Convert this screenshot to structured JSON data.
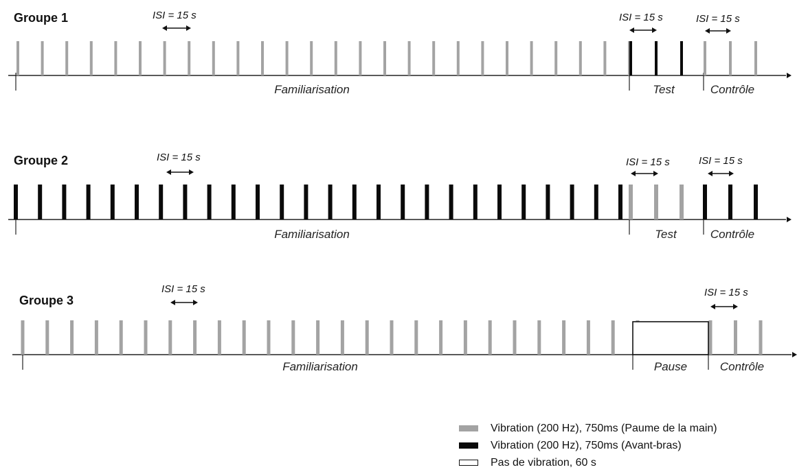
{
  "colors": {
    "palm": "#a3a3a3",
    "forearm": "#0a0a0a",
    "axis": "#222222"
  },
  "groups": [
    {
      "title": "Groupe 1",
      "phases": [
        {
          "label": "Familiarisation",
          "ticks": [
            "palm",
            "palm",
            "palm",
            "palm",
            "palm",
            "palm",
            "palm",
            "palm",
            "palm",
            "palm",
            "palm",
            "palm",
            "palm",
            "palm",
            "palm",
            "palm",
            "palm",
            "palm",
            "palm",
            "palm",
            "palm",
            "palm",
            "palm",
            "palm",
            "palm",
            "palm"
          ]
        },
        {
          "label": "Test",
          "ticks": [
            "forearm",
            "forearm",
            "forearm"
          ]
        },
        {
          "label": "Contrôle",
          "ticks": [
            "palm",
            "palm",
            "palm"
          ]
        }
      ],
      "isi_labels": [
        "ISI = 15 s",
        "ISI = 15 s",
        "ISI = 15 s"
      ]
    },
    {
      "title": "Groupe 2",
      "phases": [
        {
          "label": "Familiarisation",
          "ticks": [
            "forearm",
            "forearm",
            "forearm",
            "forearm",
            "forearm",
            "forearm",
            "forearm",
            "forearm",
            "forearm",
            "forearm",
            "forearm",
            "forearm",
            "forearm",
            "forearm",
            "forearm",
            "forearm",
            "forearm",
            "forearm",
            "forearm",
            "forearm",
            "forearm",
            "forearm",
            "forearm",
            "forearm",
            "forearm",
            "forearm"
          ]
        },
        {
          "label": "Test",
          "ticks": [
            "palm",
            "palm",
            "palm"
          ]
        },
        {
          "label": "Contrôle",
          "ticks": [
            "forearm",
            "forearm",
            "forearm"
          ]
        }
      ],
      "isi_labels": [
        "ISI = 15 s",
        "ISI = 15 s",
        "ISI = 15 s"
      ]
    },
    {
      "title": "Groupe 3",
      "phases": [
        {
          "label": "Familiarisation",
          "ticks": [
            "palm",
            "palm",
            "palm",
            "palm",
            "palm",
            "palm",
            "palm",
            "palm",
            "palm",
            "palm",
            "palm",
            "palm",
            "palm",
            "palm",
            "palm",
            "palm",
            "palm",
            "palm",
            "palm",
            "palm",
            "palm",
            "palm",
            "palm",
            "palm",
            "palm",
            "palm"
          ]
        },
        {
          "label": "Pause",
          "ticks": []
        },
        {
          "label": "Contrôle",
          "ticks": [
            "palm",
            "palm",
            "palm"
          ]
        }
      ],
      "isi_labels": [
        "ISI = 15 s",
        "ISI = 15 s"
      ]
    }
  ],
  "legend": [
    {
      "key": "palm",
      "label": "Vibration (200 Hz), 750ms (Paume de la main)"
    },
    {
      "key": "forearm",
      "label": "Vibration (200 Hz), 750ms (Avant-bras)"
    },
    {
      "key": "none",
      "label": "Pas de vibration, 60 s"
    }
  ]
}
